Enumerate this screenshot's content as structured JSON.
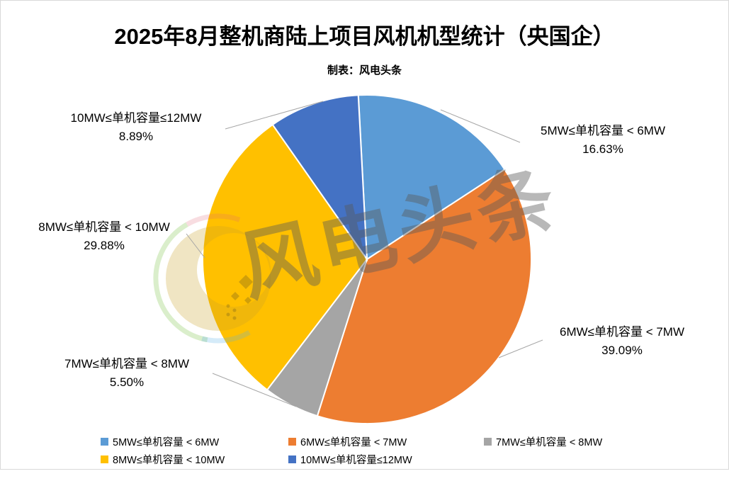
{
  "title": "2025年8月整机商陆上项目风机机型统计（央国企）",
  "subtitle": "制表：风电头条",
  "watermark": {
    "text": "风电头条"
  },
  "chart_data": {
    "type": "pie",
    "title": "2025年8月整机商陆上项目风机机型统计（央国企）",
    "subtitle": "制表：风电头条",
    "start_angle_deg": -3,
    "direction": "clockwise",
    "legend_position": "bottom",
    "slices": [
      {
        "id": "5mw-6mw",
        "label": "5MW≤单机容量 < 6MW",
        "value": 16.63,
        "pct_label": "16.63%",
        "color": "#5B9BD5"
      },
      {
        "id": "6mw-7mw",
        "label": "6MW≤单机容量 < 7MW",
        "value": 39.09,
        "pct_label": "39.09%",
        "color": "#ED7D31"
      },
      {
        "id": "7mw-8mw",
        "label": "7MW≤单机容量 < 8MW",
        "value": 5.5,
        "pct_label": "5.50%",
        "color": "#A5A5A5"
      },
      {
        "id": "8mw-10mw",
        "label": "8MW≤单机容量 < 10MW",
        "value": 29.88,
        "pct_label": "29.88%",
        "color": "#FFC000"
      },
      {
        "id": "10mw-12mw",
        "label": "10MW≤单机容量≤12MW",
        "value": 8.89,
        "pct_label": "8.89%",
        "color": "#4472C4"
      }
    ]
  }
}
